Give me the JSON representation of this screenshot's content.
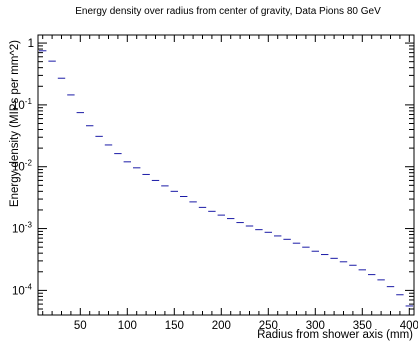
{
  "chart_data": {
    "type": "scatter",
    "title": "Energy density over radius from center of gravity, Data Pions 80 GeV",
    "xlabel": "Radius from shower axis (mm)",
    "ylabel": "Energy density (MIPs per mm^2)",
    "xlim": [
      5,
      405
    ],
    "ylim": [
      4e-05,
      1.35
    ],
    "yscale": "log",
    "grid": false,
    "legend": "none",
    "x_ticks": [
      {
        "value": 50,
        "label": "50"
      },
      {
        "value": 100,
        "label": "100"
      },
      {
        "value": 150,
        "label": "150"
      },
      {
        "value": 200,
        "label": "200"
      },
      {
        "value": 250,
        "label": "250"
      },
      {
        "value": 300,
        "label": "300"
      },
      {
        "value": 350,
        "label": "350"
      },
      {
        "value": 400,
        "label": "400"
      }
    ],
    "y_ticks": [
      {
        "value": 1,
        "base": "1",
        "exp": ""
      },
      {
        "value": 0.1,
        "base": "10",
        "exp": "-1"
      },
      {
        "value": 0.01,
        "base": "10",
        "exp": "-2"
      },
      {
        "value": 0.001,
        "base": "10",
        "exp": "-3"
      },
      {
        "value": 0.0001,
        "base": "10",
        "exp": "-4"
      }
    ],
    "bin_half_width": 5,
    "marker_color": "#1a1aa6",
    "series": [
      {
        "x": [
          10,
          20,
          30,
          40,
          50,
          60,
          70,
          80,
          90,
          100,
          110,
          120,
          130,
          140,
          150,
          160,
          170,
          180,
          190,
          200,
          210,
          220,
          230,
          240,
          250,
          260,
          270,
          280,
          290,
          300,
          310,
          320,
          330,
          340,
          350,
          360,
          370,
          380,
          390,
          400
        ],
        "y": [
          0.75,
          0.51,
          0.27,
          0.145,
          0.075,
          0.046,
          0.031,
          0.0225,
          0.0163,
          0.012,
          0.0096,
          0.0075,
          0.006,
          0.0049,
          0.004,
          0.0033,
          0.0027,
          0.0022,
          0.0019,
          0.00165,
          0.00145,
          0.00125,
          0.0011,
          0.00096,
          0.00087,
          0.00076,
          0.00067,
          0.00058,
          0.0005,
          0.00043,
          0.00038,
          0.00033,
          0.00029,
          0.000255,
          0.000215,
          0.00018,
          0.000148,
          0.000115,
          8.5e-05,
          5.6e-05
        ]
      }
    ]
  }
}
